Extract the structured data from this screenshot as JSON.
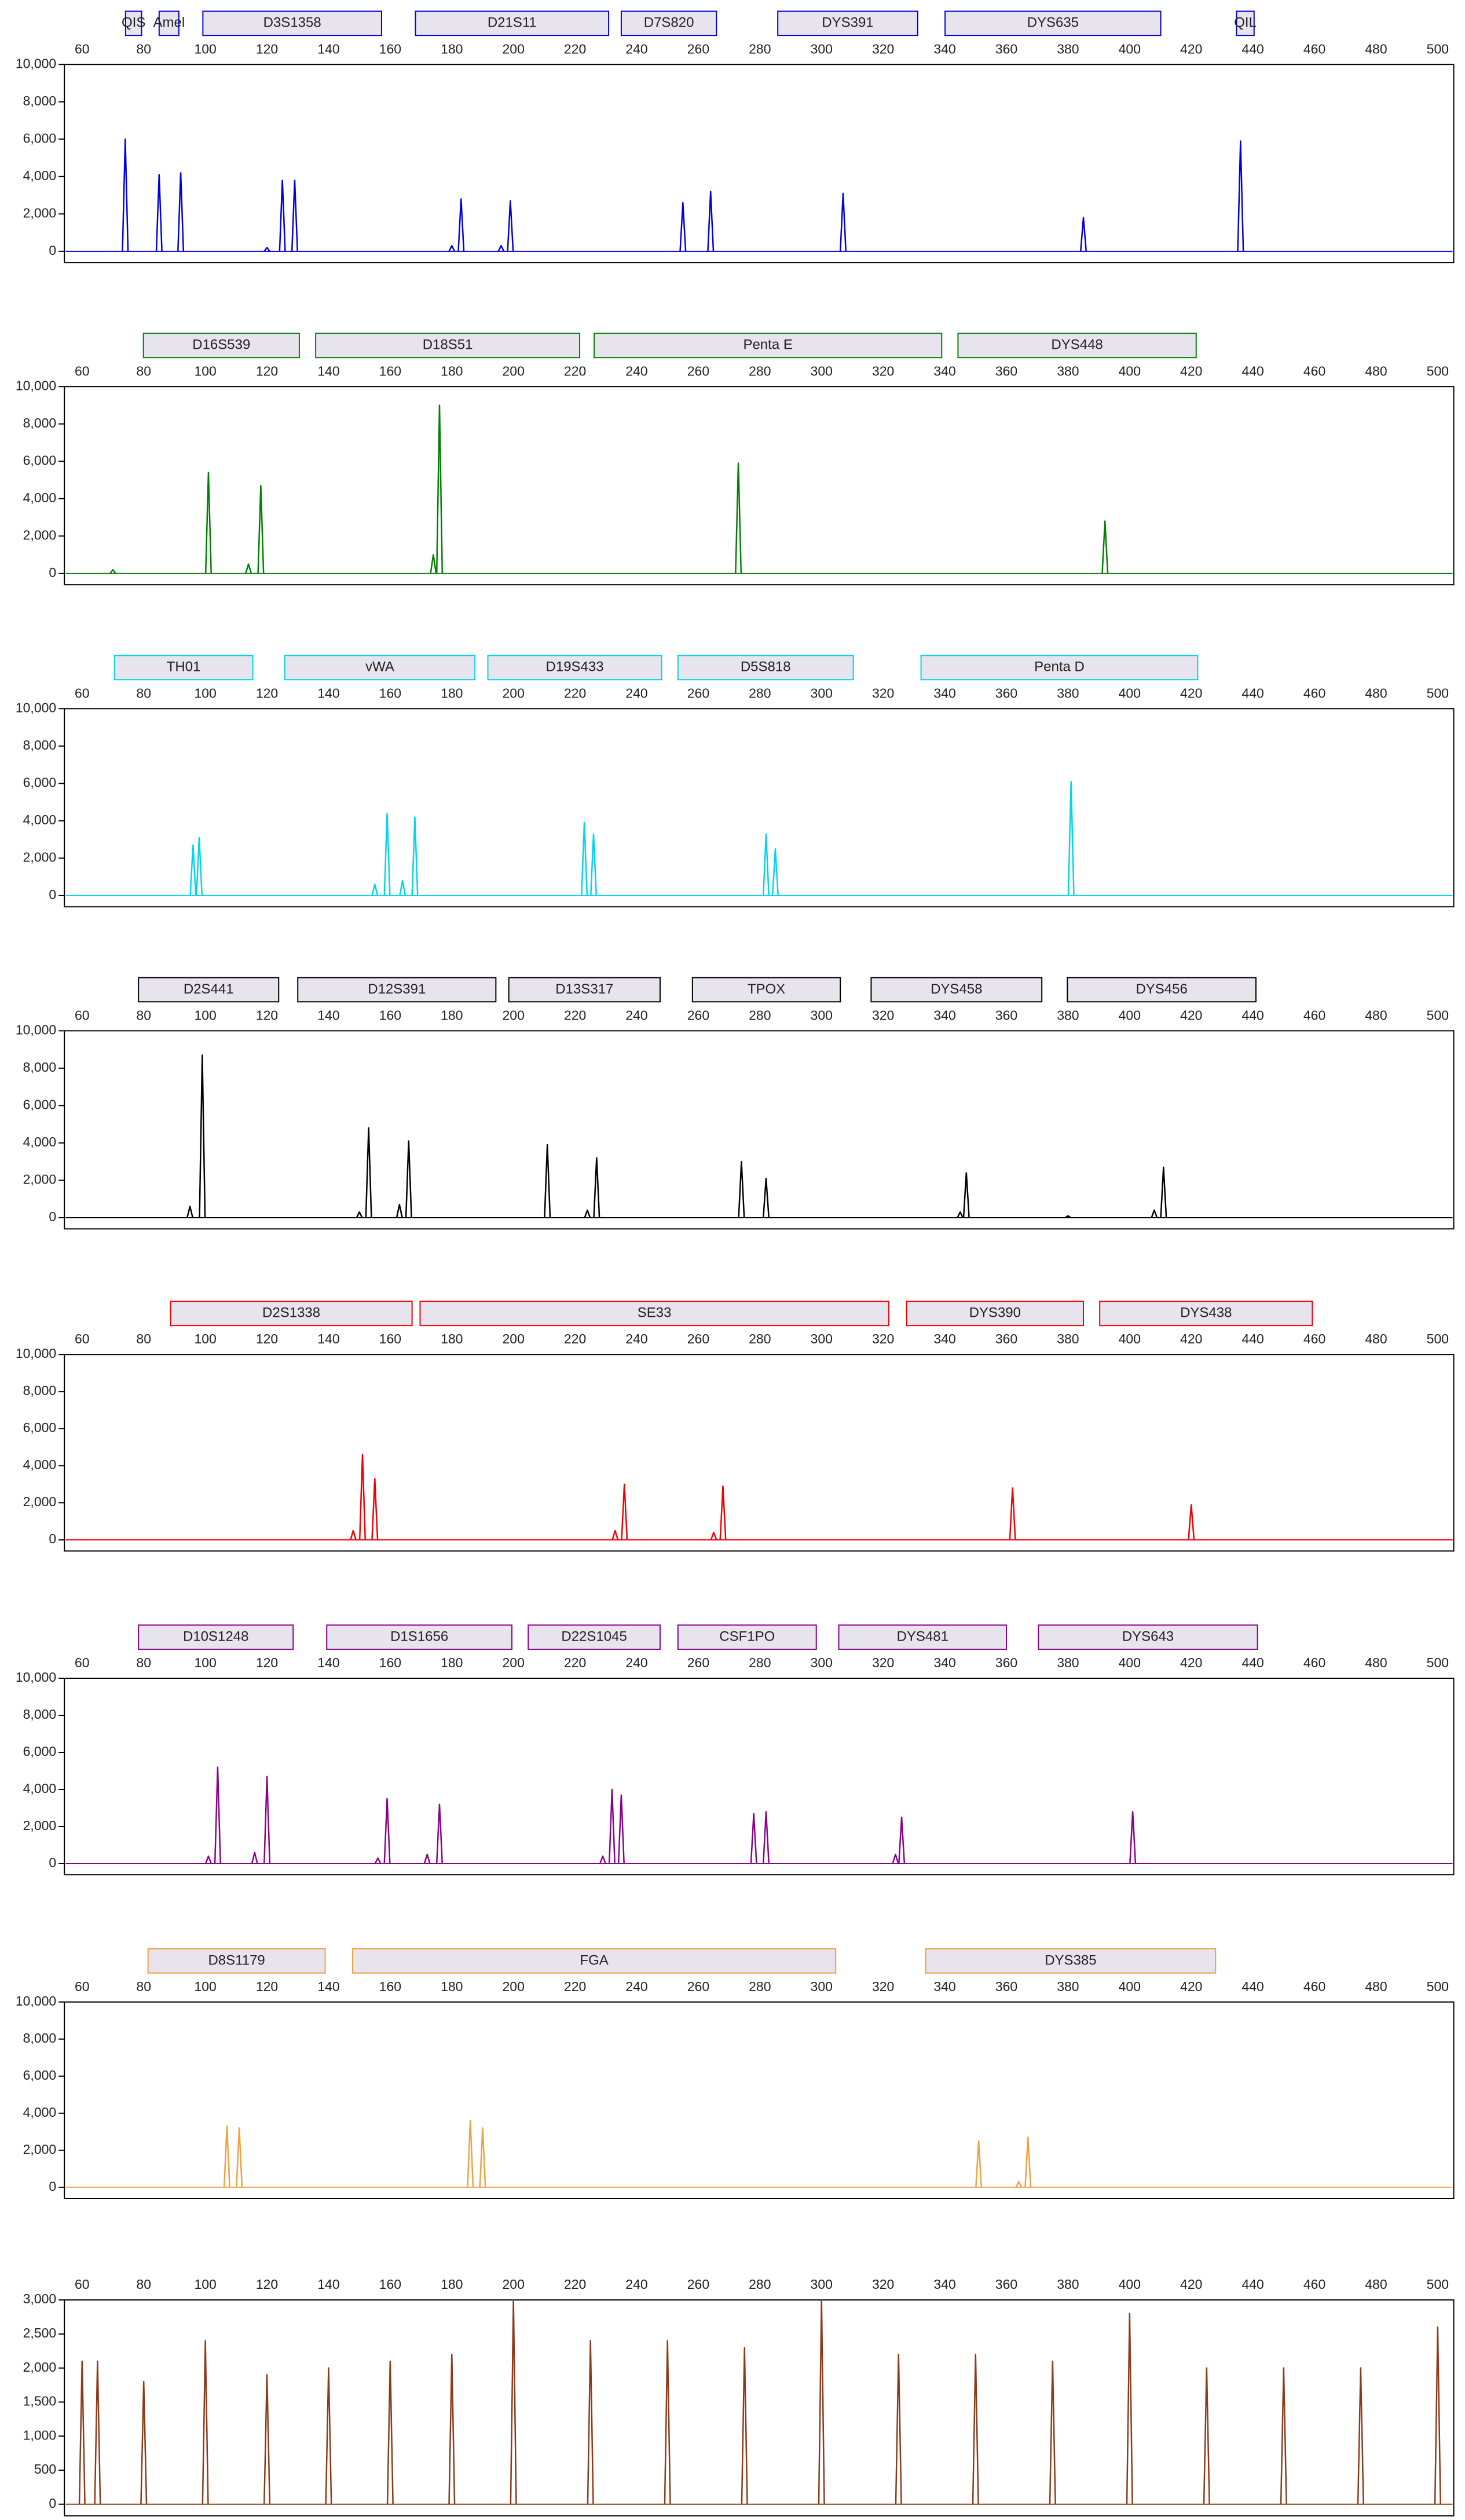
{
  "chart_data": [
    {
      "type": "peak",
      "color": "#0000dd",
      "xlim": [
        54.25,
        505.2
      ],
      "ylim": [
        -600,
        10000
      ],
      "xticks": [
        60,
        80,
        100,
        120,
        140,
        160,
        180,
        200,
        220,
        240,
        260,
        280,
        300,
        320,
        340,
        360,
        380,
        400,
        420,
        440,
        460,
        480,
        500
      ],
      "yticks": [
        0,
        {
          "value": 2000,
          "label": "2,000"
        },
        {
          "value": 4000,
          "label": "4,000"
        },
        {
          "value": 6000,
          "label": "6,000"
        },
        {
          "value": 8000,
          "label": "8,000"
        },
        {
          "value": 10000,
          "label": "10,000"
        }
      ],
      "loci": [
        {
          "name": "QIS",
          "start": 74.1,
          "end": 79.3
        },
        {
          "name": "Amel",
          "start": 85,
          "end": 91.4
        },
        {
          "name": "D3S1358",
          "start": 99.2,
          "end": 157.2
        },
        {
          "name": "D21S11",
          "start": 168.2,
          "end": 230.9
        },
        {
          "name": "D7S820",
          "start": 235,
          "end": 265.9
        },
        {
          "name": "DYS391",
          "start": 285.8,
          "end": 331.2
        },
        {
          "name": "DYS635",
          "start": 340.1,
          "end": 410.1
        },
        {
          "name": "QIL",
          "start": 434.7,
          "end": 440.4
        }
      ],
      "x": [
        74,
        85,
        92,
        120,
        125,
        129,
        180,
        183,
        196,
        199,
        255,
        264,
        307,
        385,
        436
      ],
      "values": [
        6000,
        4100,
        4200,
        200,
        3800,
        3800,
        300,
        2800,
        300,
        2700,
        2600,
        3200,
        3100,
        1800,
        5900
      ]
    },
    {
      "type": "peak",
      "color": "#008000",
      "xlim": [
        54.25,
        505.2
      ],
      "ylim": [
        -600,
        10000
      ],
      "xticks": [
        60,
        80,
        100,
        120,
        140,
        160,
        180,
        200,
        220,
        240,
        260,
        280,
        300,
        320,
        340,
        360,
        380,
        400,
        420,
        440,
        460,
        480,
        500
      ],
      "yticks": [
        0,
        {
          "value": 2000,
          "label": "2,000"
        },
        {
          "value": 4000,
          "label": "4,000"
        },
        {
          "value": 6000,
          "label": "6,000"
        },
        {
          "value": 8000,
          "label": "8,000"
        },
        {
          "value": 10000,
          "label": "10,000"
        }
      ],
      "loci": [
        {
          "name": "D16S539",
          "start": 79.9,
          "end": 130.5
        },
        {
          "name": "D18S51",
          "start": 135.8,
          "end": 221.5
        },
        {
          "name": "Penta E",
          "start": 226.2,
          "end": 339
        },
        {
          "name": "DYS448",
          "start": 344.3,
          "end": 421.6
        }
      ],
      "x": [
        70,
        101,
        114,
        118,
        174,
        176,
        273,
        392
      ],
      "values": [
        200,
        5400,
        500,
        4700,
        1000,
        9000,
        5900,
        2800
      ]
    },
    {
      "type": "peak",
      "color": "#00d4ee",
      "xlim": [
        54.25,
        505.2
      ],
      "ylim": [
        -600,
        10000
      ],
      "xticks": [
        60,
        80,
        100,
        120,
        140,
        160,
        180,
        200,
        220,
        240,
        260,
        280,
        300,
        320,
        340,
        360,
        380,
        400,
        420,
        440,
        460,
        480,
        500
      ],
      "yticks": [
        0,
        {
          "value": 2000,
          "label": "2,000"
        },
        {
          "value": 4000,
          "label": "4,000"
        },
        {
          "value": 6000,
          "label": "6,000"
        },
        {
          "value": 8000,
          "label": "8,000"
        },
        {
          "value": 10000,
          "label": "10,000"
        }
      ],
      "loci": [
        {
          "name": "TH01",
          "start": 70.5,
          "end": 115.4
        },
        {
          "name": "vWA",
          "start": 125.8,
          "end": 187.5
        },
        {
          "name": "D19S433",
          "start": 191.7,
          "end": 248.1
        },
        {
          "name": "D5S818",
          "start": 253.4,
          "end": 310.3
        },
        {
          "name": "Penta D",
          "start": 332.3,
          "end": 422.1
        }
      ],
      "x": [
        96,
        98,
        155,
        159,
        164,
        168,
        223,
        226,
        282,
        285,
        381
      ],
      "values": [
        2700,
        3100,
        600,
        4400,
        800,
        4200,
        3900,
        3300,
        3300,
        2500,
        6100
      ]
    },
    {
      "type": "peak",
      "color": "#000000",
      "xlim": [
        54.25,
        505.2
      ],
      "ylim": [
        -600,
        10000
      ],
      "xticks": [
        60,
        80,
        100,
        120,
        140,
        160,
        180,
        200,
        220,
        240,
        260,
        280,
        300,
        320,
        340,
        360,
        380,
        400,
        420,
        440,
        460,
        480,
        500
      ],
      "yticks": [
        0,
        {
          "value": 2000,
          "label": "2,000"
        },
        {
          "value": 4000,
          "label": "4,000"
        },
        {
          "value": 6000,
          "label": "6,000"
        },
        {
          "value": 8000,
          "label": "8,000"
        },
        {
          "value": 10000,
          "label": "10,000"
        }
      ],
      "loci": [
        {
          "name": "D2S441",
          "start": 78.3,
          "end": 123.8
        },
        {
          "name": "D12S391",
          "start": 130,
          "end": 194.3
        },
        {
          "name": "D13S317",
          "start": 198.5,
          "end": 247.6
        },
        {
          "name": "TPOX",
          "start": 258.1,
          "end": 306.1
        },
        {
          "name": "DYS458",
          "start": 316.1,
          "end": 371.5
        },
        {
          "name": "DYS456",
          "start": 379.8,
          "end": 441
        }
      ],
      "x": [
        95,
        99,
        150,
        153,
        163,
        166,
        211,
        224,
        227,
        274,
        282,
        345,
        347,
        380,
        408,
        411
      ],
      "values": [
        600,
        8700,
        300,
        4800,
        700,
        4100,
        3900,
        400,
        3200,
        3000,
        2100,
        300,
        2400,
        100,
        400,
        2700
      ]
    },
    {
      "type": "peak",
      "color": "#ee0000",
      "xlim": [
        54.25,
        505.2
      ],
      "ylim": [
        -600,
        10000
      ],
      "xticks": [
        60,
        80,
        100,
        120,
        140,
        160,
        180,
        200,
        220,
        240,
        260,
        280,
        300,
        320,
        340,
        360,
        380,
        400,
        420,
        440,
        460,
        480,
        500
      ],
      "yticks": [
        0,
        {
          "value": 2000,
          "label": "2,000"
        },
        {
          "value": 4000,
          "label": "4,000"
        },
        {
          "value": 6000,
          "label": "6,000"
        },
        {
          "value": 8000,
          "label": "8,000"
        },
        {
          "value": 10000,
          "label": "10,000"
        }
      ],
      "loci": [
        {
          "name": "D2S1338",
          "start": 88.7,
          "end": 167.1
        },
        {
          "name": "SE33",
          "start": 169.7,
          "end": 321.8
        },
        {
          "name": "DYS390",
          "start": 327.6,
          "end": 385
        },
        {
          "name": "DYS438",
          "start": 390.3,
          "end": 459.3
        }
      ],
      "x": [
        148,
        151,
        155,
        233,
        236,
        265,
        268,
        362,
        420
      ],
      "values": [
        500,
        4600,
        3300,
        500,
        3000,
        400,
        2900,
        2800,
        1900
      ]
    },
    {
      "type": "peak",
      "color": "#8b008b",
      "xlim": [
        54.25,
        505.2
      ],
      "ylim": [
        -600,
        10000
      ],
      "xticks": [
        60,
        80,
        100,
        120,
        140,
        160,
        180,
        200,
        220,
        240,
        260,
        280,
        300,
        320,
        340,
        360,
        380,
        400,
        420,
        440,
        460,
        480,
        500
      ],
      "yticks": [
        0,
        {
          "value": 2000,
          "label": "2,000"
        },
        {
          "value": 4000,
          "label": "4,000"
        },
        {
          "value": 6000,
          "label": "6,000"
        },
        {
          "value": 8000,
          "label": "8,000"
        },
        {
          "value": 10000,
          "label": "10,000"
        }
      ],
      "loci": [
        {
          "name": "D10S1248",
          "start": 78.3,
          "end": 128.5
        },
        {
          "name": "D1S1656",
          "start": 139.4,
          "end": 199.5
        },
        {
          "name": "D22S1045",
          "start": 204.8,
          "end": 247.6
        },
        {
          "name": "CSF1PO",
          "start": 253.4,
          "end": 298.3
        },
        {
          "name": "DYS481",
          "start": 305.6,
          "end": 360
        },
        {
          "name": "DYS643",
          "start": 370.4,
          "end": 441.5
        }
      ],
      "x": [
        101,
        104,
        116,
        120,
        156,
        159,
        172,
        176,
        229,
        232,
        235,
        278,
        282,
        324,
        326,
        401
      ],
      "values": [
        400,
        5200,
        600,
        4700,
        300,
        3500,
        500,
        3200,
        400,
        4000,
        3700,
        2700,
        2800,
        500,
        2500,
        2800
      ]
    },
    {
      "type": "peak",
      "color": "#f0a040",
      "xlim": [
        54.25,
        505.2
      ],
      "ylim": [
        -600,
        10000
      ],
      "xticks": [
        60,
        80,
        100,
        120,
        140,
        160,
        180,
        200,
        220,
        240,
        260,
        280,
        300,
        320,
        340,
        360,
        380,
        400,
        420,
        440,
        460,
        480,
        500
      ],
      "yticks": [
        0,
        {
          "value": 2000,
          "label": "2,000"
        },
        {
          "value": 4000,
          "label": "4,000"
        },
        {
          "value": 6000,
          "label": "6,000"
        },
        {
          "value": 8000,
          "label": "8,000"
        },
        {
          "value": 10000,
          "label": "10,000"
        }
      ],
      "loci": [
        {
          "name": "D8S1179",
          "start": 81.4,
          "end": 138.9
        },
        {
          "name": "FGA",
          "start": 147.8,
          "end": 304.6
        },
        {
          "name": "DYS385",
          "start": 333.8,
          "end": 427.9
        }
      ],
      "x": [
        107,
        111,
        186,
        190,
        351,
        364,
        367
      ],
      "values": [
        3300,
        3200,
        3600,
        3200,
        2500,
        300,
        2700
      ]
    },
    {
      "type": "peak",
      "color": "#8b3a1a",
      "xlim": [
        54.25,
        505.2
      ],
      "ylim": [
        -170,
        3000
      ],
      "xticks": [
        60,
        80,
        100,
        120,
        140,
        160,
        180,
        200,
        220,
        240,
        260,
        280,
        300,
        320,
        340,
        360,
        380,
        400,
        420,
        440,
        460,
        480,
        500
      ],
      "yticks": [
        0,
        500,
        {
          "value": 1000,
          "label": "1,000"
        },
        {
          "value": 1500,
          "label": "1,500"
        },
        {
          "value": 2000,
          "label": "2,000"
        },
        {
          "value": 2500,
          "label": "2,500"
        },
        {
          "value": 3000,
          "label": "3,000"
        }
      ],
      "loci": [],
      "x": [
        60,
        65,
        80,
        100,
        120,
        140,
        160,
        180,
        200,
        225,
        250,
        275,
        300,
        325,
        350,
        375,
        400,
        425,
        450,
        475,
        500
      ],
      "values": [
        2100,
        2100,
        1800,
        2400,
        1900,
        2000,
        2100,
        2200,
        3000,
        2400,
        2400,
        2300,
        3000,
        2200,
        2200,
        2100,
        2800,
        2000,
        2000,
        2000,
        2600
      ]
    }
  ]
}
